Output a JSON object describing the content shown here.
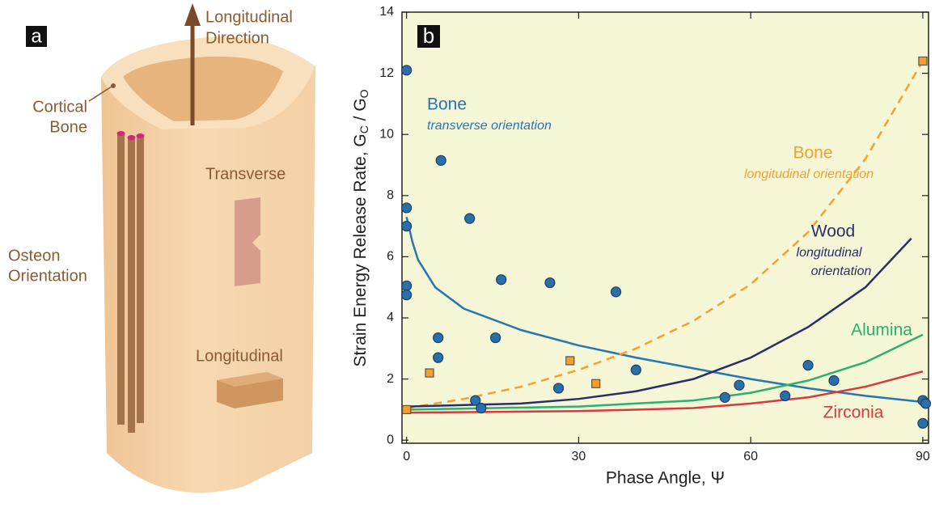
{
  "diagram": {
    "panel_label": "a",
    "direction": [
      "Longitudinal",
      "Direction"
    ],
    "cortical": [
      "Cortical",
      "Bone"
    ],
    "osteon": [
      "Osteon",
      "Orientation"
    ],
    "transverse": "Transverse",
    "longitudinal": "Longitudinal"
  },
  "chart_data": {
    "type": "scatter",
    "panel_label": "b",
    "x_label": "Phase Angle, Ψ",
    "y_label_parts": [
      "Strain Energy Release Rate, G",
      "C",
      " / G",
      "O"
    ],
    "xlim": [
      -0.8,
      91
    ],
    "ylim": [
      -0.1,
      14
    ],
    "xticks": [
      0,
      30,
      60,
      90
    ],
    "yticks": [
      0,
      2,
      4,
      6,
      8,
      10,
      12,
      14
    ],
    "background": "#f4f6d6",
    "series": [
      {
        "type": "line",
        "name": "Bone",
        "note": [
          "transverse orientation"
        ],
        "color": "#2a74b4",
        "dash": false,
        "x": [
          0,
          1,
          2,
          5,
          10,
          20,
          30,
          40,
          50,
          60,
          70,
          80,
          90
        ],
        "values": [
          7.3,
          6.5,
          5.9,
          5.0,
          4.3,
          3.6,
          3.1,
          2.7,
          2.35,
          2.0,
          1.7,
          1.45,
          1.25
        ]
      },
      {
        "type": "line",
        "name": "Bone",
        "note": [
          "longitudinal orientation"
        ],
        "color": "#f3a030",
        "dash": true,
        "x": [
          0,
          10,
          20,
          30,
          40,
          50,
          60,
          70,
          80,
          90
        ],
        "values": [
          1.05,
          1.35,
          1.75,
          2.3,
          3.0,
          3.9,
          5.1,
          6.8,
          9.2,
          12.4
        ]
      },
      {
        "type": "line",
        "name": "Wood",
        "note": [
          "longitudinal",
          "orientation"
        ],
        "color": "#2b2d6b",
        "dash": false,
        "x": [
          0,
          20,
          30,
          40,
          50,
          60,
          70,
          80,
          88
        ],
        "values": [
          1.1,
          1.2,
          1.35,
          1.6,
          2.0,
          2.7,
          3.7,
          5.0,
          6.6
        ]
      },
      {
        "type": "line",
        "name": "Alumina",
        "note": [],
        "color": "#2bb070",
        "dash": false,
        "x": [
          0,
          30,
          50,
          60,
          70,
          80,
          90
        ],
        "values": [
          1.0,
          1.1,
          1.3,
          1.55,
          1.95,
          2.55,
          3.45
        ]
      },
      {
        "type": "line",
        "name": "Zirconia",
        "note": [],
        "color": "#d8393f",
        "dash": false,
        "x": [
          0,
          30,
          50,
          60,
          70,
          80,
          90
        ],
        "values": [
          0.9,
          0.95,
          1.05,
          1.2,
          1.4,
          1.75,
          2.25
        ]
      },
      {
        "type": "scatter",
        "marker": "circle",
        "color": "#2a6fa8",
        "x": [
          0,
          0,
          0,
          0,
          0,
          6,
          11,
          16.5,
          25,
          36.5,
          5.5,
          5.5,
          15.5,
          12,
          13,
          26.5,
          40,
          55.5,
          58,
          66,
          70,
          74.5,
          90,
          90.5,
          90
        ],
        "values": [
          12.1,
          7.6,
          7.0,
          5.05,
          4.75,
          9.15,
          7.25,
          5.25,
          5.15,
          4.85,
          3.35,
          2.7,
          3.35,
          1.3,
          1.05,
          1.7,
          2.3,
          1.4,
          1.8,
          1.45,
          2.45,
          1.95,
          1.3,
          1.2,
          0.55
        ]
      },
      {
        "type": "scatter",
        "marker": "square",
        "color": "#f3a030",
        "x": [
          0,
          4,
          28.5,
          33,
          90
        ],
        "values": [
          1.0,
          2.2,
          2.6,
          1.85,
          12.4
        ]
      }
    ]
  }
}
